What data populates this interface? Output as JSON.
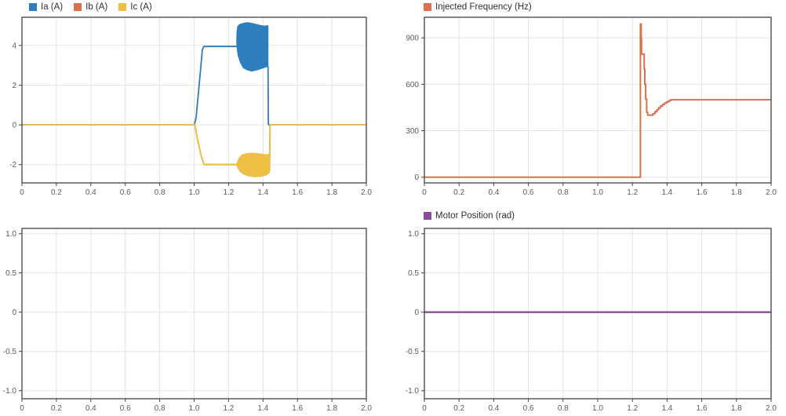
{
  "app": {
    "background": "#ffffff",
    "grid_color": "#e3e3e3",
    "border_color": "#414141",
    "tick_label_color": "#5b5b5b"
  },
  "chart_data": [
    {
      "type": "line",
      "title": "",
      "xlabel": "",
      "ylabel": "",
      "legend_position": "top-left",
      "legend": [
        {
          "label": "Ia (A)",
          "color": "#2e7ebf"
        },
        {
          "label": "Ib (A)",
          "color": "#dc6f4e"
        },
        {
          "label": "Ic (A)",
          "color": "#edbf45"
        }
      ],
      "xlim": [
        0,
        2.0
      ],
      "ylim": [
        -2.92,
        5.42
      ],
      "xticks": [
        0,
        0.2,
        0.4,
        0.6,
        0.8,
        1.0,
        1.2,
        1.4,
        1.6,
        1.8,
        2.0
      ],
      "xtick_labels": [
        "0",
        "0.2",
        "0.4",
        "0.6",
        "0.8",
        "1.0",
        "1.2",
        "1.4",
        "1.6",
        "1.8",
        "2.0"
      ],
      "yticks": [
        4,
        2,
        0,
        -2
      ],
      "ytick_labels": [
        "4",
        "2",
        "0",
        "-2"
      ],
      "grid": true,
      "series": [
        {
          "name": "Ia",
          "color": "#2e7ebf",
          "width": 1.8,
          "lines": [
            [
              [
                0,
                0
              ],
              [
                1.002,
                0
              ],
              [
                1.012,
                0.4
              ],
              [
                1.03,
                2.1
              ],
              [
                1.048,
                3.8
              ],
              [
                1.056,
                3.95
              ],
              [
                1.25,
                3.95
              ]
            ],
            [
              [
                1.429,
                2.95
              ],
              [
                1.431,
                0.05
              ],
              [
                1.434,
                0
              ],
              [
                2,
                0
              ]
            ]
          ],
          "fills": [
            [
              [
                1.247,
                4.2
              ],
              [
                1.248,
                4.6
              ],
              [
                1.252,
                4.95
              ],
              [
                1.262,
                5.05
              ],
              [
                1.285,
                5.12
              ],
              [
                1.31,
                5.15
              ],
              [
                1.345,
                5.1
              ],
              [
                1.375,
                5.03
              ],
              [
                1.405,
                4.98
              ],
              [
                1.429,
                5.0
              ],
              [
                1.429,
                2.95
              ],
              [
                1.405,
                2.88
              ],
              [
                1.37,
                2.78
              ],
              [
                1.335,
                2.7
              ],
              [
                1.305,
                2.78
              ],
              [
                1.285,
                2.88
              ],
              [
                1.268,
                3.15
              ],
              [
                1.255,
                3.5
              ],
              [
                1.249,
                3.85
              ]
            ]
          ],
          "description": "Phase A current: 0 A until t=1.0 s, ramps to 3.95 A, dense oscillation burst (2.7 to 5.15 A) from t=1.25 to 1.43 s, returns to 0 A"
        },
        {
          "name": "Ib",
          "color": "#dc6f4e",
          "width": 1.8,
          "lines": [
            [
              [
                0,
                0
              ],
              [
                1.004,
                0
              ],
              [
                1.02,
                -0.75
              ],
              [
                1.042,
                -1.6
              ],
              [
                1.058,
                -2.0
              ],
              [
                1.43,
                -2.0
              ]
            ],
            [
              [
                1.438,
                -2.3
              ],
              [
                1.441,
                0
              ],
              [
                2,
                0
              ]
            ]
          ],
          "fills": [],
          "description": "Phase B current: overlaps Ic and is hidden beneath it"
        },
        {
          "name": "Ic",
          "color": "#edbf45",
          "width": 1.8,
          "lines": [
            [
              [
                0,
                0
              ],
              [
                1.004,
                0
              ],
              [
                1.02,
                -0.75
              ],
              [
                1.042,
                -1.6
              ],
              [
                1.058,
                -2.0
              ],
              [
                1.43,
                -2.0
              ]
            ],
            [
              [
                1.438,
                -2.3
              ],
              [
                1.441,
                0
              ],
              [
                2,
                0
              ]
            ]
          ],
          "fills": [
            [
              [
                1.247,
                -2.05
              ],
              [
                1.25,
                -1.9
              ],
              [
                1.26,
                -1.68
              ],
              [
                1.275,
                -1.52
              ],
              [
                1.3,
                -1.45
              ],
              [
                1.33,
                -1.42
              ],
              [
                1.37,
                -1.44
              ],
              [
                1.4,
                -1.48
              ],
              [
                1.425,
                -1.5
              ],
              [
                1.438,
                -1.44
              ],
              [
                1.438,
                -2.4
              ],
              [
                1.42,
                -2.52
              ],
              [
                1.39,
                -2.6
              ],
              [
                1.35,
                -2.62
              ],
              [
                1.31,
                -2.56
              ],
              [
                1.28,
                -2.45
              ],
              [
                1.26,
                -2.27
              ],
              [
                1.25,
                -2.12
              ]
            ]
          ],
          "description": "Phase C current: 0 A until t=1.0 s, ramps to -2 A, oscillation burst (-1.42 to -2.6 A) from t=1.25 to 1.44 s, returns to 0 A"
        }
      ]
    },
    {
      "type": "line",
      "title": "",
      "xlabel": "",
      "ylabel": "",
      "legend_position": "top-left",
      "legend": [
        {
          "label": "Injected Frequency (Hz)",
          "color": "#dc6f4e"
        }
      ],
      "xlim": [
        0,
        2.0
      ],
      "ylim": [
        -37,
        1033
      ],
      "xticks": [
        0,
        0.2,
        0.4,
        0.6,
        0.8,
        1.0,
        1.2,
        1.4,
        1.6,
        1.8,
        2.0
      ],
      "xtick_labels": [
        "0",
        "0.2",
        "0.4",
        "0.6",
        "0.8",
        "1.0",
        "1.2",
        "1.4",
        "1.6",
        "1.8",
        "2.0"
      ],
      "yticks": [
        900,
        600,
        300,
        0
      ],
      "ytick_labels": [
        "900",
        "600",
        "300",
        "0"
      ],
      "grid": true,
      "series": [
        {
          "name": "Injected Frequency",
          "color": "#dc6f4e",
          "width": 2,
          "lines": [
            [
              [
                0,
                0
              ],
              [
                1.246,
                0
              ],
              [
                1.246,
                990
              ],
              [
                1.2505,
                990
              ],
              [
                1.2505,
                895
              ],
              [
                1.2525,
                895
              ],
              [
                1.2525,
                795
              ],
              [
                1.268,
                795
              ],
              [
                1.268,
                700
              ],
              [
                1.2715,
                700
              ],
              [
                1.2715,
                600
              ],
              [
                1.2765,
                600
              ],
              [
                1.2765,
                505
              ],
              [
                1.2825,
                505
              ],
              [
                1.2825,
                420
              ],
              [
                1.288,
                420
              ],
              [
                1.288,
                400
              ],
              [
                1.318,
                400
              ],
              [
                1.318,
                410
              ],
              [
                1.33,
                410
              ],
              [
                1.33,
                423
              ],
              [
                1.341,
                423
              ],
              [
                1.341,
                436
              ],
              [
                1.352,
                436
              ],
              [
                1.352,
                449
              ],
              [
                1.363,
                449
              ],
              [
                1.363,
                460
              ],
              [
                1.374,
                460
              ],
              [
                1.374,
                470
              ],
              [
                1.386,
                470
              ],
              [
                1.386,
                479
              ],
              [
                1.398,
                479
              ],
              [
                1.398,
                487
              ],
              [
                1.41,
                487
              ],
              [
                1.41,
                494
              ],
              [
                1.421,
                494
              ],
              [
                1.421,
                500
              ],
              [
                2,
                500
              ]
            ]
          ],
          "fills": [],
          "description": "0 Hz until t=1.25 s, spike to ~990 Hz, steps down through 795/600/505 Hz to ~400 Hz dip, staircase recovery to steady 500 Hz from t=1.42 s"
        }
      ]
    },
    {
      "type": "line",
      "title": "",
      "xlabel": "",
      "ylabel": "",
      "legend_position": "none",
      "legend": [],
      "xlim": [
        0,
        2.0
      ],
      "ylim": [
        -1.103,
        1.067
      ],
      "xticks": [
        0,
        0.2,
        0.4,
        0.6,
        0.8,
        1.0,
        1.2,
        1.4,
        1.6,
        1.8,
        2.0
      ],
      "xtick_labels": [
        "0",
        "0.2",
        "0.4",
        "0.6",
        "0.8",
        "1.0",
        "1.2",
        "1.4",
        "1.6",
        "1.8",
        "2.0"
      ],
      "yticks": [
        1.0,
        0.5,
        0,
        -0.5,
        -1.0
      ],
      "ytick_labels": [
        "1.0",
        "0.5",
        "0",
        "-0.5",
        "-1.0"
      ],
      "grid": true,
      "series": [],
      "description": "Empty axes, no signal plotted"
    },
    {
      "type": "line",
      "title": "",
      "xlabel": "",
      "ylabel": "",
      "legend_position": "top-left",
      "legend": [
        {
          "label": "Motor Position (rad)",
          "color": "#8c4c9e"
        }
      ],
      "xlim": [
        0,
        2.0
      ],
      "ylim": [
        -1.103,
        1.067
      ],
      "xticks": [
        0,
        0.2,
        0.4,
        0.6,
        0.8,
        1.0,
        1.2,
        1.4,
        1.6,
        1.8,
        2.0
      ],
      "xtick_labels": [
        "0",
        "0.2",
        "0.4",
        "0.6",
        "0.8",
        "1.0",
        "1.2",
        "1.4",
        "1.6",
        "1.8",
        "2.0"
      ],
      "yticks": [
        1.0,
        0.5,
        0,
        -0.5,
        -1.0
      ],
      "ytick_labels": [
        "1.0",
        "0.5",
        "0",
        "-0.5",
        "-1.0"
      ],
      "grid": true,
      "series": [
        {
          "name": "Motor Position",
          "color": "#8c4c9e",
          "width": 2.4,
          "lines": [
            [
              [
                0,
                0
              ],
              [
                2,
                0
              ]
            ]
          ],
          "fills": [],
          "description": "Constant 0 rad for the full 0-2 s span"
        }
      ]
    }
  ]
}
